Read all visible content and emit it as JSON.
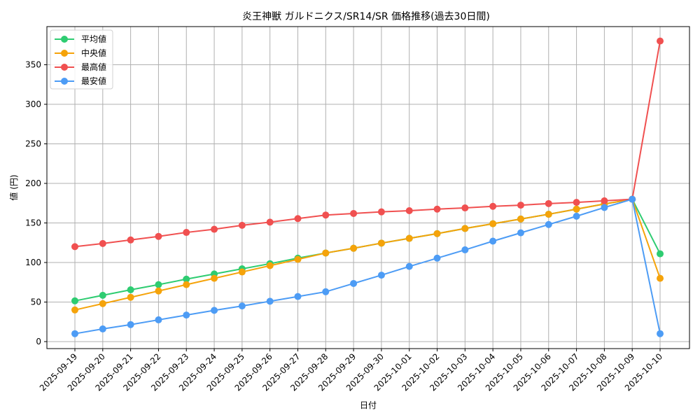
{
  "chart_data": {
    "type": "line",
    "title": "炎王神獣 ガルドニクス/SR14/SR 価格推移(過去30日間)",
    "xlabel": "日付",
    "ylabel": "値 (円)",
    "ylim": [
      -8,
      395
    ],
    "yticks": [
      0,
      50,
      100,
      150,
      200,
      250,
      300,
      350
    ],
    "grid": true,
    "legend_position": "upper left",
    "categories": [
      "2025-09-19",
      "2025-09-20",
      "2025-09-21",
      "2025-09-22",
      "2025-09-23",
      "2025-09-24",
      "2025-09-25",
      "2025-09-26",
      "2025-09-27",
      "2025-09-28",
      "2025-09-29",
      "2025-09-30",
      "2025-10-01",
      "2025-10-02",
      "2025-10-03",
      "2025-10-04",
      "2025-10-05",
      "2025-10-06",
      "2025-10-07",
      "2025-10-08",
      "2025-10-09",
      "2025-10-10"
    ],
    "series": [
      {
        "name": "平均値",
        "color": "#2ecc71",
        "values": [
          51.5,
          58.5,
          65.5,
          72,
          79,
          85.5,
          92,
          98.5,
          105.5,
          112,
          118,
          124.5,
          130.5,
          136.5,
          143,
          149,
          155,
          161,
          167.5,
          174,
          180,
          111
        ]
      },
      {
        "name": "中央値",
        "color": "#f5a30a",
        "values": [
          40,
          48,
          56,
          64,
          72,
          80,
          88,
          96,
          104,
          112,
          118,
          124.5,
          130.5,
          136.5,
          143,
          149,
          155,
          161,
          167.5,
          174,
          180,
          80
        ]
      },
      {
        "name": "最高値",
        "color": "#f05050",
        "values": [
          120,
          124,
          128.5,
          133,
          138,
          142,
          147,
          151,
          155.5,
          160,
          162,
          164,
          165.5,
          167.5,
          169,
          171,
          172.5,
          174.5,
          176,
          178,
          180,
          380
        ]
      },
      {
        "name": "最安値",
        "color": "#4d9cf5",
        "values": [
          10,
          16,
          21.5,
          27.5,
          33.5,
          39.5,
          45,
          51,
          57,
          63,
          73.5,
          84,
          95,
          105.5,
          116,
          127,
          137.5,
          148,
          158.5,
          169.5,
          180,
          10
        ]
      }
    ]
  }
}
